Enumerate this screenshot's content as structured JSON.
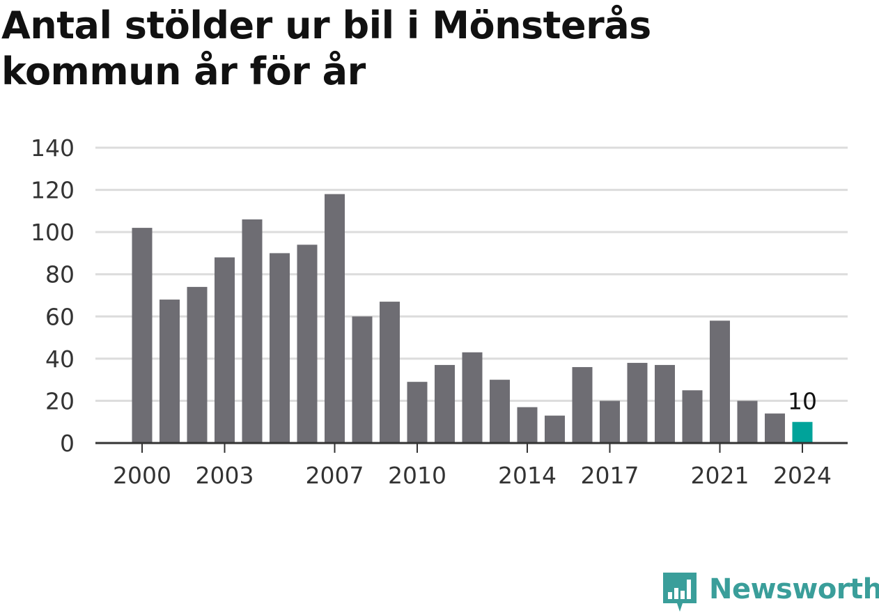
{
  "title": "Antal stölder ur bil i Mönsterås kommun år för år",
  "brand": {
    "name": "Newsworthy",
    "color": "#3a9e9a",
    "icon": "bar-chart-speech-bubble-icon"
  },
  "chart_data": {
    "type": "bar",
    "title": "Antal stölder ur bil i Mönsterås kommun år för år",
    "xlabel": "",
    "ylabel": "",
    "ylim": [
      0,
      140
    ],
    "yticks": [
      0,
      20,
      40,
      60,
      80,
      100,
      120,
      140
    ],
    "xtick_labels": [
      "2000",
      "2003",
      "2007",
      "2010",
      "2014",
      "2017",
      "2021",
      "2024"
    ],
    "grid": true,
    "bar_color": "#6e6d73",
    "highlight_color": "#00a39a",
    "categories": [
      "2000",
      "2001",
      "2002",
      "2003",
      "2004",
      "2005",
      "2006",
      "2007",
      "2008",
      "2009",
      "2010",
      "2011",
      "2012",
      "2013",
      "2014",
      "2015",
      "2016",
      "2017",
      "2018",
      "2019",
      "2020",
      "2021",
      "2022",
      "2023",
      "2024"
    ],
    "values": [
      102,
      68,
      74,
      88,
      106,
      90,
      94,
      118,
      60,
      67,
      29,
      37,
      43,
      30,
      17,
      13,
      36,
      20,
      38,
      37,
      25,
      58,
      20,
      14,
      10
    ],
    "highlight": {
      "category": "2024",
      "label": "10"
    }
  }
}
